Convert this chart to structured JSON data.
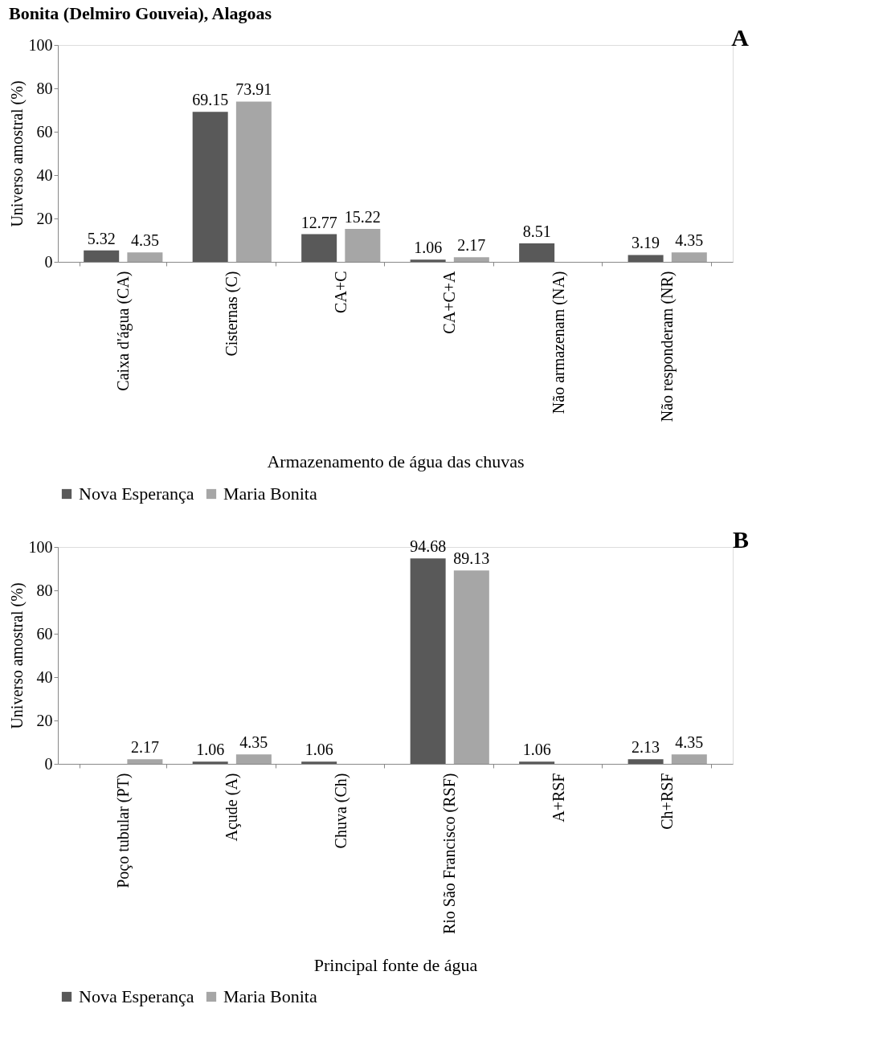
{
  "chart_data": [
    {
      "type": "bar",
      "title": "Bonita (Delmiro Gouveia), Alagoas",
      "categories": [
        "Caixa d'água (CA)",
        "Cisternas (C)",
        "CA+C",
        "CA+C+A",
        "Não armazenam (NA)",
        "Não responderam (NR)"
      ],
      "series": [
        {
          "name": "Nova Esperança",
          "color": "#595959",
          "values": [
            5.32,
            69.15,
            12.77,
            1.06,
            8.51,
            3.19
          ]
        },
        {
          "name": "Maria Bonita",
          "color": "#a6a6a6",
          "values": [
            4.35,
            73.91,
            15.22,
            2.17,
            null,
            4.35
          ]
        }
      ],
      "xlabel": "Armazenamento de água das chuvas",
      "ylabel": "Universo amostral (%)",
      "ylim": [
        0,
        100
      ],
      "yticks": [
        0,
        20,
        40,
        60,
        80,
        100
      ],
      "grid": false,
      "legend": "bottom",
      "data_labels": true,
      "annotations": [
        "A"
      ]
    },
    {
      "type": "bar",
      "categories": [
        "Poço tubular (PT)",
        "Açude (A)",
        "Chuva (Ch)",
        "Rio São Francisco (RSF)",
        "A+RSF",
        "Ch+RSF"
      ],
      "series": [
        {
          "name": "Nova Esperança",
          "color": "#595959",
          "values": [
            null,
            1.06,
            1.06,
            94.68,
            1.06,
            2.13
          ]
        },
        {
          "name": "Maria Bonita",
          "color": "#a6a6a6",
          "values": [
            2.17,
            4.35,
            null,
            89.13,
            null,
            4.35
          ]
        }
      ],
      "xlabel": "Principal fonte de água",
      "ylabel": "Universo amostral (%)",
      "ylim": [
        0,
        100
      ],
      "yticks": [
        0,
        20,
        40,
        60,
        80,
        100
      ],
      "grid": false,
      "legend": "bottom",
      "data_labels": true,
      "annotations": [
        "B"
      ]
    }
  ]
}
